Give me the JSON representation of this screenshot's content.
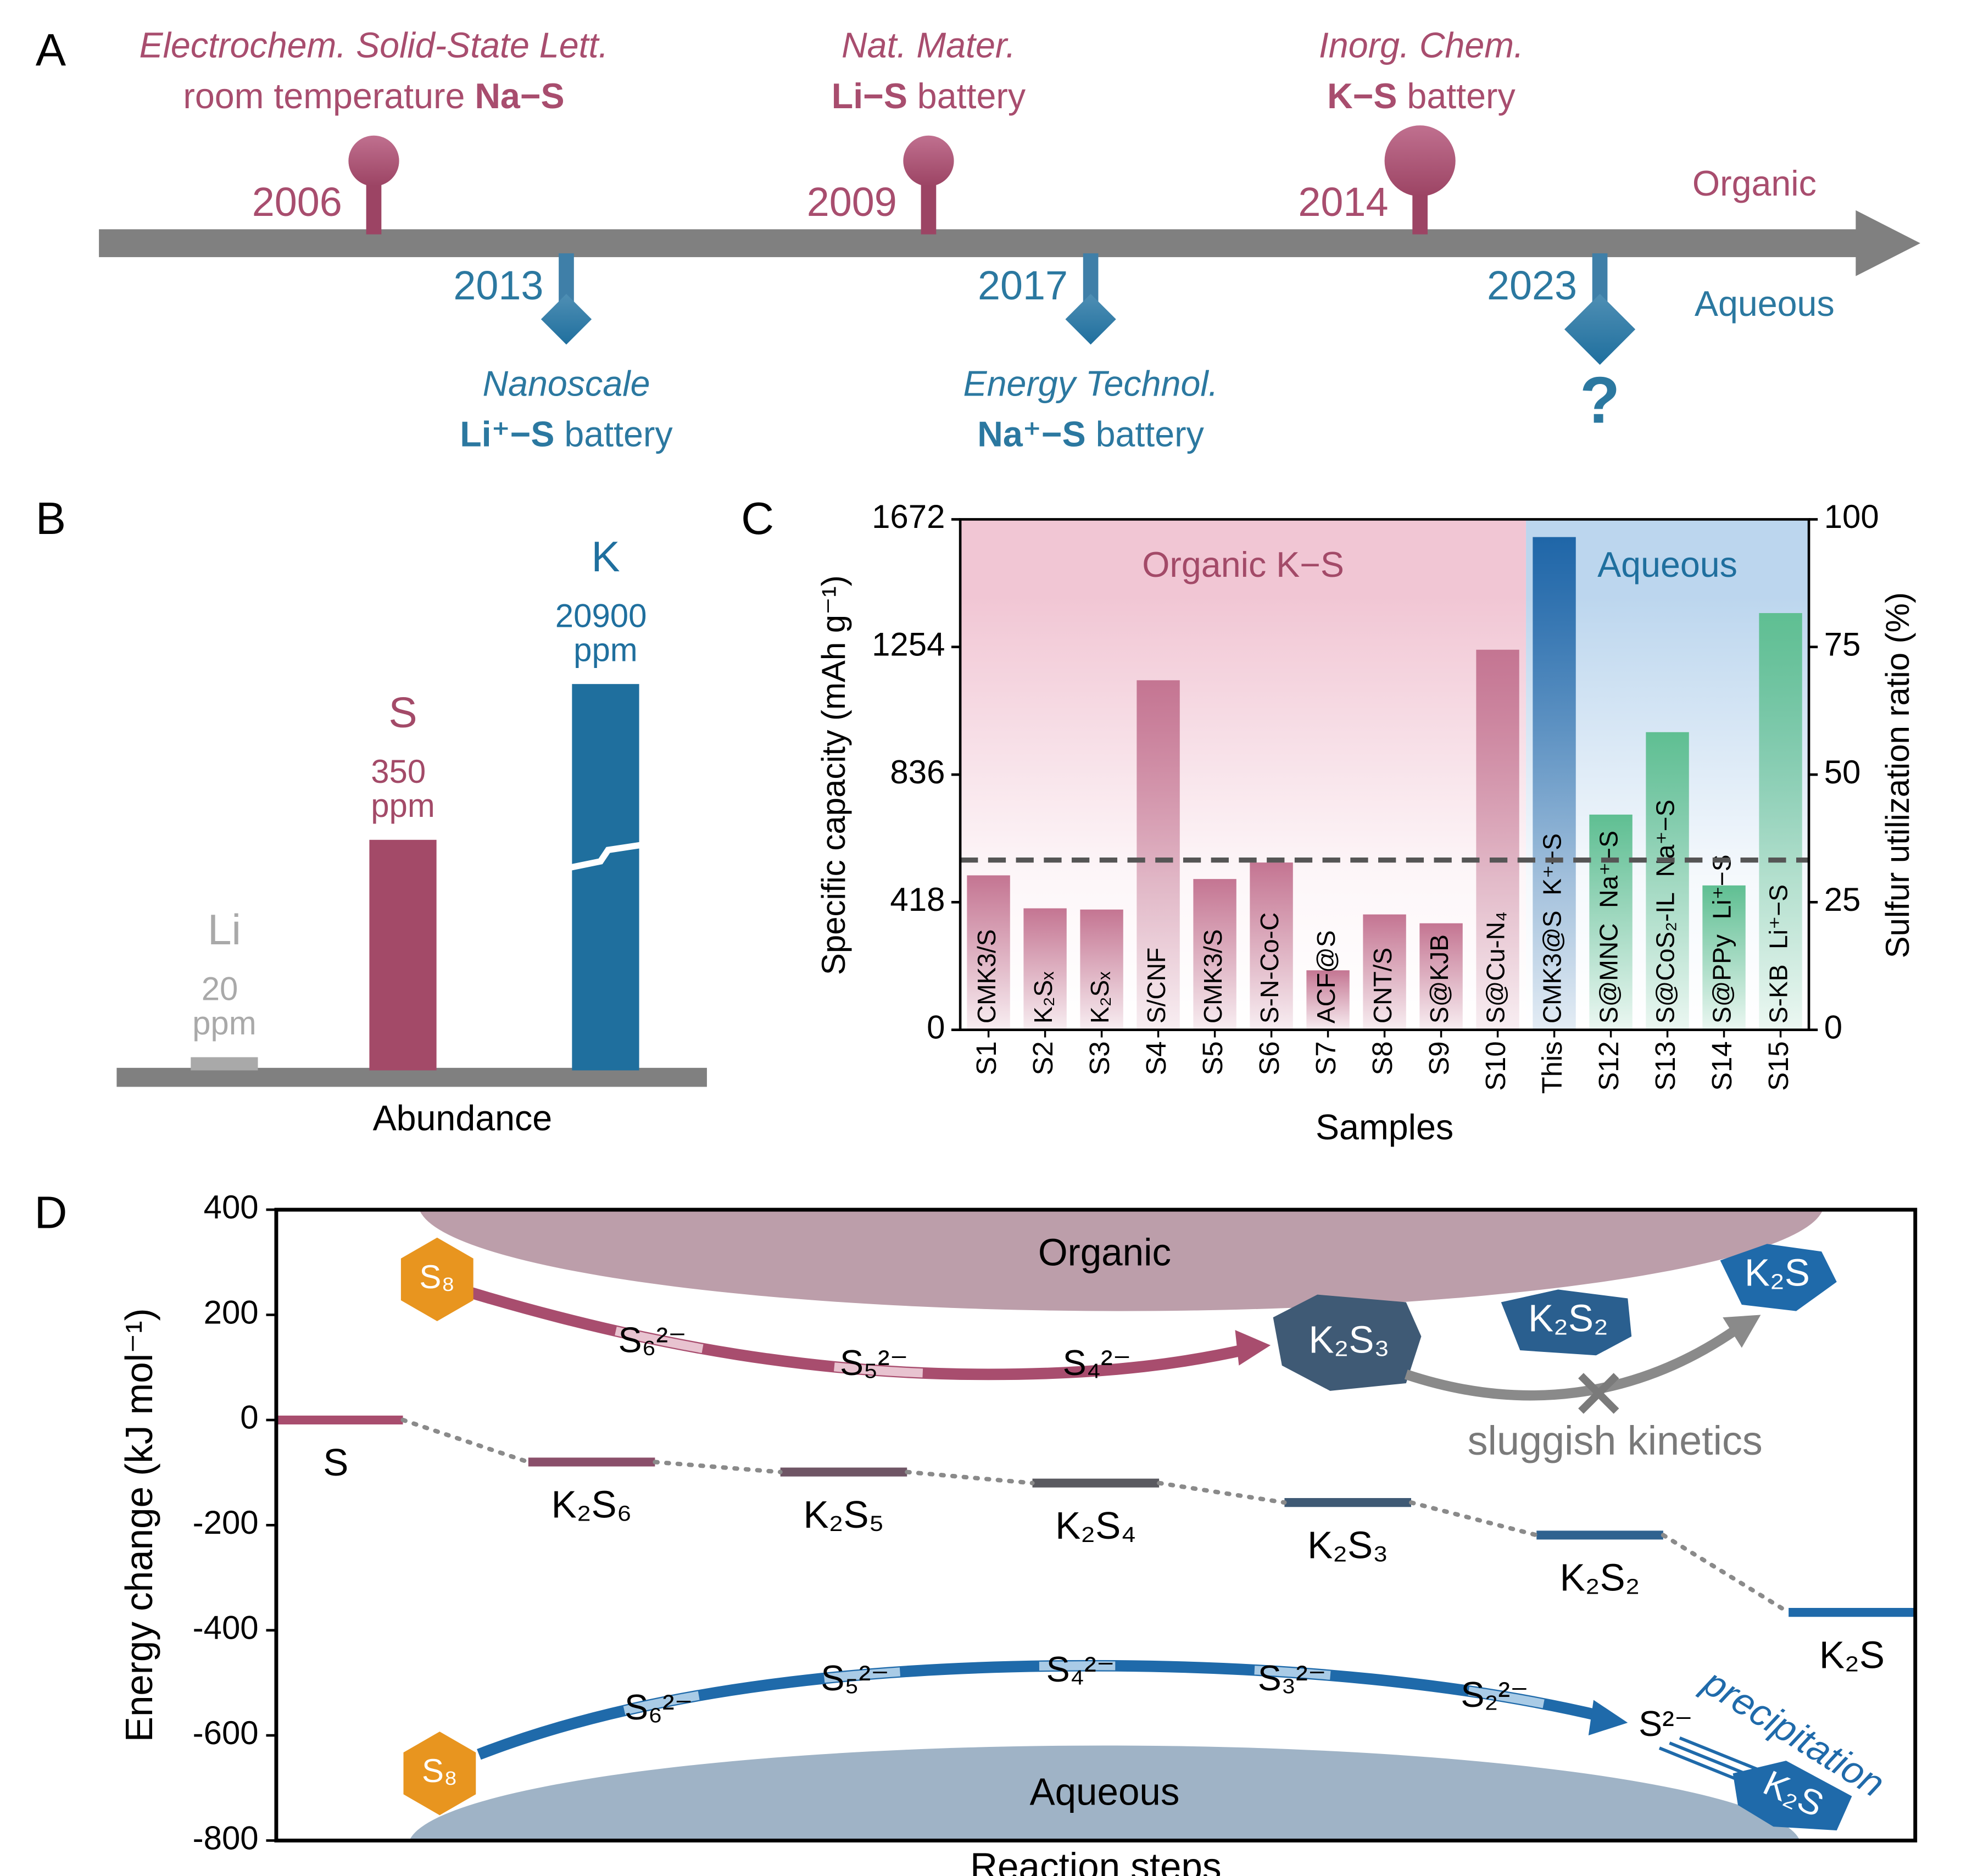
{
  "timeline": {
    "label": "A",
    "organic_label": "Organic",
    "aqueous_label": "Aqueous",
    "organic": [
      {
        "year": "2006",
        "journal": "Electrochem. Solid-State Lett.",
        "prefix": "room temperature ",
        "system": "Na−S"
      },
      {
        "year": "2009",
        "journal": "Nat. Mater.",
        "system": "Li−S",
        "suffix": " battery"
      },
      {
        "year": "2014",
        "journal": "Inorg. Chem.",
        "system": "K−S",
        "suffix": " battery"
      }
    ],
    "aqueous": [
      {
        "year": "2013",
        "journal": "Nanoscale",
        "system": "Li⁺−S",
        "suffix": " battery"
      },
      {
        "year": "2017",
        "journal": "Energy Technol.",
        "system": "Na⁺−S",
        "suffix": " battery"
      },
      {
        "year": "2023",
        "mark": "?"
      }
    ]
  },
  "chart_data": [
    {
      "label": "B",
      "type": "bar",
      "categories": [
        "Li",
        "S",
        "K"
      ],
      "values": [
        20,
        350,
        20900
      ],
      "value_labels": [
        "20 ppm",
        "350 ppm",
        "20900 ppm"
      ],
      "colors": [
        "#a9a9a9",
        "#a34a68",
        "#1f6f9e"
      ],
      "xlabel": "Abundance"
    },
    {
      "label": "C",
      "type": "bar",
      "categories": [
        "S1",
        "S2",
        "S3",
        "S4",
        "S5",
        "S6",
        "S7",
        "S8",
        "S9",
        "S10",
        "This",
        "S12",
        "S13",
        "S14",
        "S15"
      ],
      "values": [
        506,
        398,
        394,
        1145,
        494,
        548,
        195,
        378,
        349,
        1245,
        1614,
        705,
        975,
        473,
        1365
      ],
      "bar_labels": [
        "CMK3/S",
        "K₂Sₓ",
        "K₂Sₓ",
        "S/CNF",
        "CMK3/S",
        "S-N-Co-C",
        "ACF@S",
        "CNT/S",
        "S@KJB",
        "S@Cu-N₄",
        "CMK3@S",
        "S@MNC",
        "S@CoS₂-IL",
        "S@PPy",
        "S-KB"
      ],
      "system_labels": [
        null,
        null,
        null,
        null,
        null,
        null,
        null,
        null,
        null,
        null,
        "K⁺−S",
        "Na⁺−S",
        "Na⁺−S",
        "Li⁺−S",
        "Li⁺−S"
      ],
      "colors": [
        "#c47592",
        "#c47592",
        "#c47592",
        "#c47592",
        "#c47592",
        "#c47592",
        "#c47592",
        "#c47592",
        "#c47592",
        "#c47592",
        "#1f66a8",
        "#5fbf92",
        "#5fbf92",
        "#5fbf92",
        "#5fbf92"
      ],
      "regions": [
        {
          "label": "Organic K−S",
          "from": "S1",
          "to": "S10",
          "color": "#f1c6d4",
          "label_color": "#a34a68"
        },
        {
          "label": "Aqueous",
          "from": "This",
          "to": "S15",
          "color": "#bcd6ee",
          "label_color": "#1f6f9e"
        }
      ],
      "reference_line": 556,
      "ylim": [
        0,
        1672
      ],
      "yticks": [
        0,
        418,
        836,
        1254,
        1672
      ],
      "y2lim": [
        0,
        100
      ],
      "y2ticks": [
        0,
        25,
        50,
        75,
        100
      ],
      "ylabel": "Specific capacity (mAh g⁻¹)",
      "y2label": "Sulfur utilization ratio (%)",
      "xlabel": "Samples"
    },
    {
      "label": "D",
      "type": "energy_level",
      "categories": [
        "S",
        "K₂S₆",
        "K₂S₅",
        "K₂S₄",
        "K₂S₃",
        "K₂S₂",
        "K₂S"
      ],
      "values": [
        0,
        -80,
        -99,
        -120,
        -157,
        -219,
        -366
      ],
      "colors": [
        "#a84d6e",
        "#8a4f6a",
        "#6f5565",
        "#5a5a60",
        "#3f5a75",
        "#2f6290",
        "#1f6aaa"
      ],
      "ylim": [
        -800,
        400
      ],
      "yticks": [
        -800,
        -600,
        -400,
        -200,
        0,
        200,
        400
      ],
      "ylabel": "Energy change (kJ mol⁻¹)",
      "xlabel": "Reaction steps",
      "annotations": {
        "organic": "Organic",
        "aqueous": "Aqueous",
        "organic_path": [
          "S₈",
          "S₆²⁻",
          "S₅²⁻",
          "S₄²⁻"
        ],
        "organic_products": [
          "K₂S₃",
          "K₂S₂",
          "K₂S"
        ],
        "sluggish": "sluggish kinetics",
        "aqueous_path": [
          "S₈",
          "S₆²⁻",
          "S₅²⁻",
          "S₄²⁻",
          "S₃²⁻",
          "S₂²⁻",
          "S²⁻"
        ],
        "precipitation": "precipitation",
        "aqueous_product": "K₂S"
      }
    }
  ]
}
